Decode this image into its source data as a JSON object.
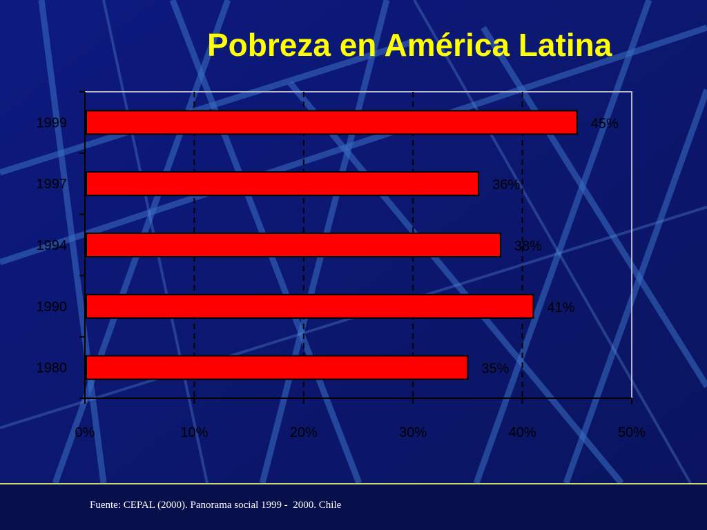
{
  "slide": {
    "title": "Pobreza en América Latina",
    "source": "Fuente: CEPAL (2000). Panorama social 1999 -  2000. Chile"
  },
  "colors": {
    "background": "#0b1770",
    "title": "#ffff00",
    "bar": "#ff0000",
    "text": "#000000"
  },
  "chart_data": {
    "type": "bar",
    "orientation": "horizontal",
    "title": "",
    "xlabel": "",
    "ylabel": "",
    "categories": [
      "1999",
      "1997",
      "1994",
      "1990",
      "1980"
    ],
    "values": [
      45,
      36,
      38,
      41,
      35
    ],
    "data_labels": [
      "45%",
      "36%",
      "38%",
      "41%",
      "35%"
    ],
    "x_ticks": [
      "0%",
      "10%",
      "20%",
      "30%",
      "40%",
      "50%"
    ],
    "xlim": [
      0,
      50
    ],
    "grid": "vertical dashed",
    "legend": "none"
  }
}
